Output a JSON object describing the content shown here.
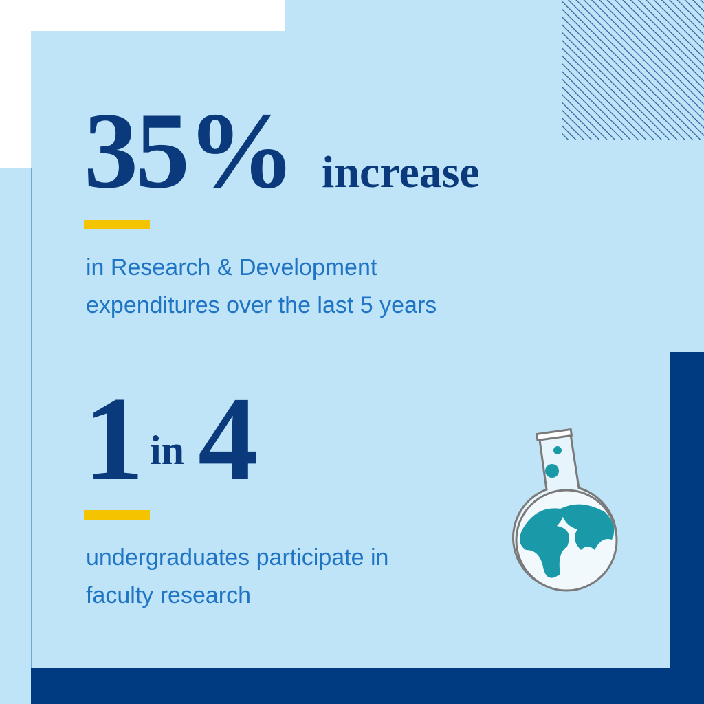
{
  "stats": [
    {
      "figure": "35%",
      "unit": "increase",
      "description": [
        "in Research & Development",
        "expenditures over the last 5 years"
      ]
    },
    {
      "figure": [
        "1",
        "in",
        "4"
      ],
      "description": [
        "undergraduates participate in",
        "faculty research"
      ]
    }
  ]
}
